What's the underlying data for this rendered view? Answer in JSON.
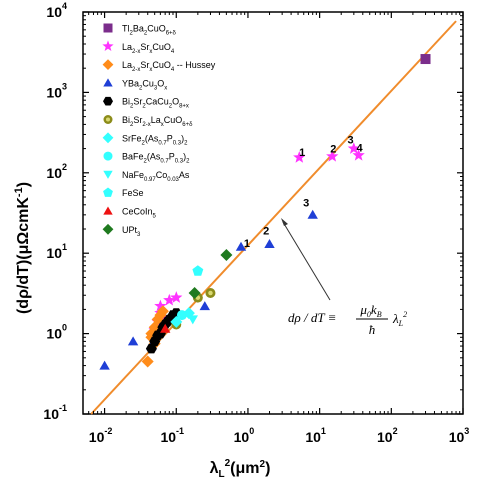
{
  "chart_data": {
    "type": "scatter",
    "title": "",
    "xlabel": "λ_L²(μm²)",
    "ylabel": "(dρ/dT)(μΩcmK⁻¹)",
    "x_scale": "log",
    "y_scale": "log",
    "xlim": [
      0.005,
      1000
    ],
    "ylim": [
      0.1,
      10000
    ],
    "x_ticks": [
      {
        "base": "10",
        "exp": "-2",
        "value": 0.01
      },
      {
        "base": "10",
        "exp": "-1",
        "value": 0.1
      },
      {
        "base": "10",
        "exp": "0",
        "value": 1
      },
      {
        "base": "10",
        "exp": "1",
        "value": 10
      },
      {
        "base": "10",
        "exp": "2",
        "value": 100
      },
      {
        "base": "10",
        "exp": "3",
        "value": 1000
      }
    ],
    "y_ticks": [
      {
        "base": "10",
        "exp": "-1",
        "value": 0.1
      },
      {
        "base": "10",
        "exp": "0",
        "value": 1
      },
      {
        "base": "10",
        "exp": "1",
        "value": 10
      },
      {
        "base": "10",
        "exp": "2",
        "value": 100
      },
      {
        "base": "10",
        "exp": "3",
        "value": 1000
      },
      {
        "base": "10",
        "exp": "4",
        "value": 10000
      }
    ],
    "legend_position": "top-left",
    "fit_line": {
      "x": [
        0.0065,
        800
      ],
      "y": [
        0.1,
        7700
      ],
      "color": "#f08c2c"
    },
    "series": [
      {
        "name": "Tl2Ba2CuO6+δ",
        "marker": "square",
        "color": "#7b2d8b",
        "points": [
          [
            300,
            2600
          ]
        ]
      },
      {
        "name": "La2-xSrxCuO4",
        "marker": "star",
        "color": "#ff33ff",
        "points": [
          [
            5.2,
            155
          ],
          [
            15,
            160
          ],
          [
            30,
            200
          ],
          [
            35,
            165
          ],
          [
            0.06,
            1.8
          ],
          [
            0.05,
            1.1
          ],
          [
            0.07,
            1.5
          ],
          [
            0.08,
            2.6
          ],
          [
            0.1,
            2.8
          ],
          [
            0.06,
            2.2
          ],
          [
            0.055,
            1.4
          ]
        ]
      },
      {
        "name": "La2-xSrxCuO4 -- Hussey",
        "marker": "diamond",
        "color": "#ff8c1a",
        "points": [
          [
            0.04,
            0.45
          ],
          [
            0.045,
            0.9
          ],
          [
            0.05,
            1.2
          ],
          [
            0.055,
            1.5
          ],
          [
            0.06,
            1.7
          ],
          [
            0.065,
            1.9
          ],
          [
            0.05,
            0.75
          ],
          [
            0.045,
            1.0
          ]
        ]
      },
      {
        "name": "YBa2Cu3Ox",
        "marker": "triangle-up",
        "color": "#1f3fd6",
        "points": [
          [
            0.01,
            0.4
          ],
          [
            0.025,
            0.8
          ],
          [
            0.045,
            0.7
          ],
          [
            0.8,
            12
          ],
          [
            2.0,
            13
          ],
          [
            8,
            30
          ],
          [
            0.25,
            2.2
          ]
        ]
      },
      {
        "name": "Bi2Sr2CaCu2O8+x",
        "marker": "hexagon",
        "color": "#000000",
        "points": [
          [
            0.045,
            0.65
          ],
          [
            0.05,
            0.8
          ],
          [
            0.055,
            0.95
          ],
          [
            0.06,
            1.0
          ],
          [
            0.065,
            1.2
          ],
          [
            0.07,
            1.3
          ],
          [
            0.075,
            1.4
          ],
          [
            0.08,
            1.5
          ],
          [
            0.09,
            1.7
          ],
          [
            0.1,
            1.8
          ]
        ]
      },
      {
        "name": "Bi2Sr2-xLaxCuO6+δ",
        "marker": "circle",
        "color": "#8c8c1a",
        "points": [
          [
            0.1,
            1.3
          ],
          [
            0.3,
            3.2
          ],
          [
            0.2,
            2.8
          ]
        ]
      },
      {
        "name": "SrFe2(As0.7P0.3)2",
        "marker": "diamond",
        "color": "#33ffff",
        "points": [
          [
            0.1,
            1.4
          ],
          [
            0.15,
            1.8
          ]
        ]
      },
      {
        "name": "BaFe2(As0.7P0.3)2",
        "marker": "circle",
        "color": "#33ffff",
        "points": [
          [
            0.12,
            1.7
          ]
        ]
      },
      {
        "name": "NaFe0.97Co0.03As",
        "marker": "triangle-down",
        "color": "#33ffff",
        "points": [
          [
            0.17,
            1.5
          ]
        ]
      },
      {
        "name": "FeSe",
        "marker": "pentagon",
        "color": "#33ffff",
        "points": [
          [
            0.2,
            6.0
          ]
        ]
      },
      {
        "name": "CeCoIn5",
        "marker": "triangle-up",
        "color": "#ee1111",
        "points": [
          [
            0.07,
            1.15
          ]
        ]
      },
      {
        "name": "UPt3",
        "marker": "diamond",
        "color": "#1f7a1f",
        "points": [
          [
            0.5,
            9.5
          ],
          [
            0.18,
            3.2
          ]
        ]
      }
    ],
    "annotations": [
      {
        "text": "1",
        "x": 0.97,
        "y": 12
      },
      {
        "text": "2",
        "x": 1.8,
        "y": 17
      },
      {
        "text": "3",
        "x": 6.5,
        "y": 38
      },
      {
        "text": "1",
        "x": 5.7,
        "y": 162
      },
      {
        "text": "2",
        "x": 15.5,
        "y": 180
      },
      {
        "text": "3",
        "x": 27,
        "y": 230
      },
      {
        "text": "4",
        "x": 36,
        "y": 183
      }
    ],
    "equation": {
      "text": "dρ / dT ≡ μ0kB / ħ λL²"
    }
  }
}
